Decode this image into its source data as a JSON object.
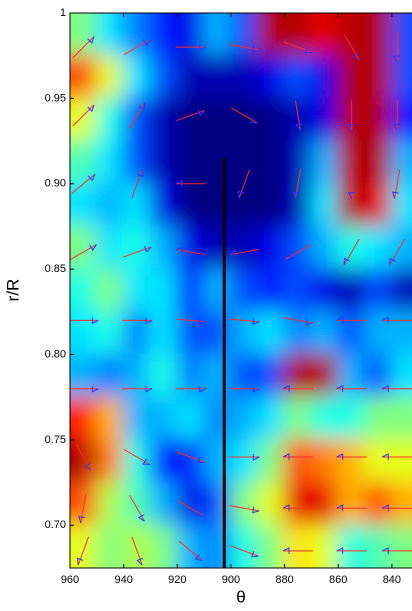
{
  "chart_data": {
    "type": "heatmap",
    "xlabel": "θ",
    "ylabel": "r/R",
    "xlim": [
      960,
      832.5
    ],
    "ylim": [
      0.675,
      1
    ],
    "xticks": [
      960,
      940,
      920,
      900,
      880,
      860,
      840
    ],
    "yticks": [
      1,
      0.95,
      {
        "value": 0.9,
        "label": "0.90"
      },
      0.85,
      {
        "value": 0.8,
        "label": "0.80"
      },
      0.75,
      {
        "value": 0.7,
        "label": "0.70"
      }
    ],
    "colormap": "jet",
    "field": {
      "x": [
        955,
        945,
        935,
        925,
        915,
        905,
        895,
        885,
        875,
        865,
        855,
        845,
        835
      ],
      "y": [
        0.9875,
        0.9625,
        0.9375,
        0.9125,
        0.8875,
        0.8625,
        0.8375,
        0.8125,
        0.7875,
        0.7625,
        0.7375,
        0.7125,
        0.6875
      ],
      "values": [
        [
          0.5,
          0.35,
          0.25,
          0.15,
          0.1,
          0.3,
          0.2,
          0.95,
          0.95,
          0.9,
          0.95,
          0.95,
          0.2
        ],
        [
          0.8,
          0.6,
          0.35,
          0.2,
          0.05,
          0.05,
          0.05,
          0.1,
          0.2,
          0.1,
          0.95,
          0.95,
          0.2
        ],
        [
          0.6,
          0.4,
          0.2,
          0.05,
          0,
          0,
          0,
          0,
          0.05,
          0.1,
          0.95,
          0.95,
          0.15
        ],
        [
          0.45,
          0.35,
          0.2,
          0.05,
          0,
          0,
          0,
          0,
          0.05,
          0.3,
          0.95,
          0.95,
          0.3
        ],
        [
          0.35,
          0.3,
          0.35,
          0.1,
          0,
          0,
          0,
          0,
          0.05,
          0.35,
          0.95,
          0.9,
          0.35
        ],
        [
          0.5,
          0.35,
          0.4,
          0.3,
          0.1,
          0.05,
          0.05,
          0.1,
          0.2,
          0.3,
          0.4,
          0.35,
          0.3
        ],
        [
          0.4,
          0.5,
          0.35,
          0.35,
          0.15,
          0.3,
          0.2,
          0.15,
          0.2,
          0.1,
          0.05,
          0.2,
          0.05
        ],
        [
          0.35,
          0.4,
          0.25,
          0.35,
          0.2,
          0.2,
          0.3,
          0.35,
          0.25,
          0.3,
          0.2,
          0.3,
          0.3
        ],
        [
          0.3,
          0.25,
          0.3,
          0.4,
          0.25,
          0.3,
          0.2,
          0.2,
          0.95,
          0.95,
          0.3,
          0.2,
          0.35
        ],
        [
          0.85,
          0.7,
          0.3,
          0.3,
          0.35,
          0.25,
          0.3,
          0.35,
          0.5,
          0.4,
          0.4,
          0.5,
          0.5
        ],
        [
          0.95,
          0.75,
          0.4,
          0.15,
          0.15,
          0.3,
          0.35,
          0.5,
          0.8,
          0.75,
          0.7,
          0.6,
          0.6
        ],
        [
          0.8,
          0.55,
          0.45,
          0.3,
          0.1,
          0.2,
          0.5,
          0.6,
          0.9,
          0.9,
          0.7,
          0.8,
          0.7
        ],
        [
          0.6,
          0.5,
          0.55,
          0.5,
          0.3,
          0.25,
          0.4,
          0.5,
          0.65,
          0.6,
          0.4,
          0.45,
          0.5
        ]
      ]
    },
    "quiver": {
      "x": [
        955,
        935,
        915,
        895,
        875,
        855,
        838
      ],
      "y": [
        0.98,
        0.94,
        0.9,
        0.86,
        0.82,
        0.78,
        0.74,
        0.71,
        0.685
      ],
      "angle": [
        [
          45,
          30,
          0,
          -10,
          -20,
          -60,
          -90
        ],
        [
          45,
          60,
          20,
          -30,
          -80,
          -90,
          -90
        ],
        [
          40,
          70,
          180,
          -110,
          -100,
          -90,
          -100
        ],
        [
          30,
          20,
          170,
          190,
          -150,
          -120,
          -120
        ],
        [
          0,
          0,
          -5,
          -5,
          -10,
          180,
          180
        ],
        [
          0,
          0,
          0,
          0,
          180,
          180,
          180
        ],
        [
          -60,
          -30,
          -20,
          0,
          180,
          180,
          180
        ],
        [
          -100,
          -60,
          -30,
          -10,
          180,
          180,
          180
        ],
        [
          -110,
          -70,
          -40,
          -20,
          180,
          180,
          180
        ]
      ],
      "color": "#ff2a2a",
      "head_color": "#3030ff"
    },
    "reference_line": {
      "x": 902.5,
      "y": [
        0.675,
        0.915
      ],
      "color": "#000000"
    }
  }
}
